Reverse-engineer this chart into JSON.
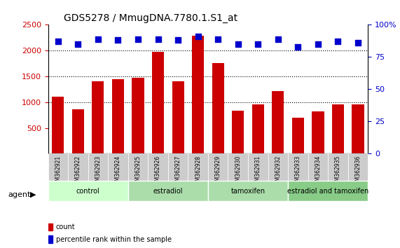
{
  "title": "GDS5278 / MmugDNA.7780.1.S1_at",
  "samples": [
    "GSM362921",
    "GSM362922",
    "GSM362923",
    "GSM362924",
    "GSM362925",
    "GSM362926",
    "GSM362927",
    "GSM362928",
    "GSM362929",
    "GSM362930",
    "GSM362931",
    "GSM362932",
    "GSM362933",
    "GSM362934",
    "GSM362935",
    "GSM362936"
  ],
  "counts": [
    1100,
    860,
    1400,
    1440,
    1480,
    1980,
    1400,
    2290,
    1760,
    840,
    960,
    1210,
    700,
    820,
    960,
    960
  ],
  "percentile": [
    87,
    85,
    89,
    88,
    89,
    89,
    88,
    91,
    89,
    85,
    85,
    89,
    83,
    85,
    87,
    86
  ],
  "bar_color": "#cc0000",
  "dot_color": "#0000cc",
  "groups": [
    {
      "label": "control",
      "start": 0,
      "end": 4,
      "color": "#ccffcc"
    },
    {
      "label": "estradiol",
      "start": 4,
      "end": 8,
      "color": "#99ee99"
    },
    {
      "label": "tamoxifen",
      "start": 8,
      "end": 12,
      "color": "#99ee99"
    },
    {
      "label": "estradiol and tamoxifen",
      "start": 12,
      "end": 16,
      "color": "#66dd66"
    }
  ],
  "ylim_left": [
    0,
    2500
  ],
  "ylim_right": [
    0,
    100
  ],
  "yticks_left": [
    500,
    1000,
    1500,
    2000,
    2500
  ],
  "yticks_right": [
    0,
    25,
    50,
    75,
    100
  ],
  "percentile_scale_factor": 25,
  "bar_width": 0.6,
  "background_color": "#ffffff",
  "plot_bg_color": "#ffffff",
  "grid_color": "#000000",
  "tick_area_color": "#cccccc",
  "agent_label": "agent"
}
